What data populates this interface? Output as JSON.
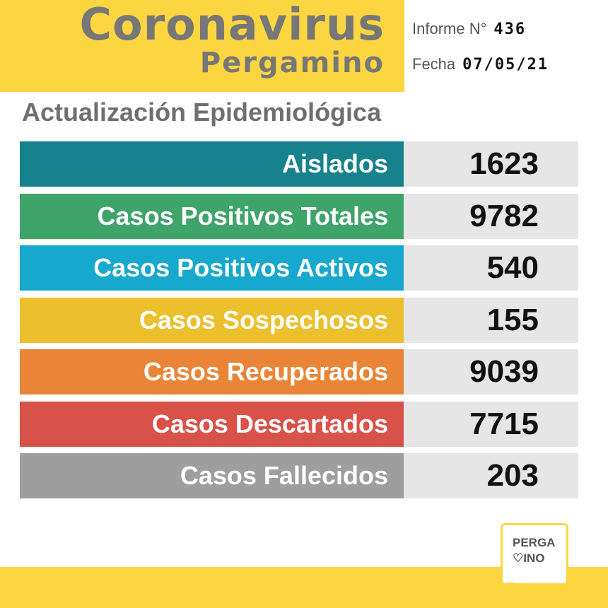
{
  "header": {
    "title": "Coronavirus",
    "city": "Pergamino",
    "informe_label": "Informe N°",
    "informe_value": "436",
    "fecha_label": "Fecha",
    "fecha_value": "07/05/21"
  },
  "subtitle": "Actualización Epidemiológica",
  "stats": [
    {
      "label": "Aislados",
      "value": "1623",
      "color": "#17828d"
    },
    {
      "label": "Casos Positivos Totales",
      "value": "9782",
      "color": "#3fa46a"
    },
    {
      "label": "Casos Positivos Activos",
      "value": "540",
      "color": "#16a9cd"
    },
    {
      "label": "Casos Sospechosos",
      "value": "155",
      "color": "#ecbf2d"
    },
    {
      "label": "Casos Recuperados",
      "value": "9039",
      "color": "#ea8436"
    },
    {
      "label": "Casos Descartados",
      "value": "7715",
      "color": "#d9524a"
    },
    {
      "label": "Casos Fallecidos",
      "value": "203",
      "color": "#9e9e9e"
    }
  ],
  "logo": {
    "line1": "PERGA",
    "line2": "♡INO"
  },
  "colors": {
    "yellow": "#fcd640",
    "title_gray": "#777777"
  }
}
